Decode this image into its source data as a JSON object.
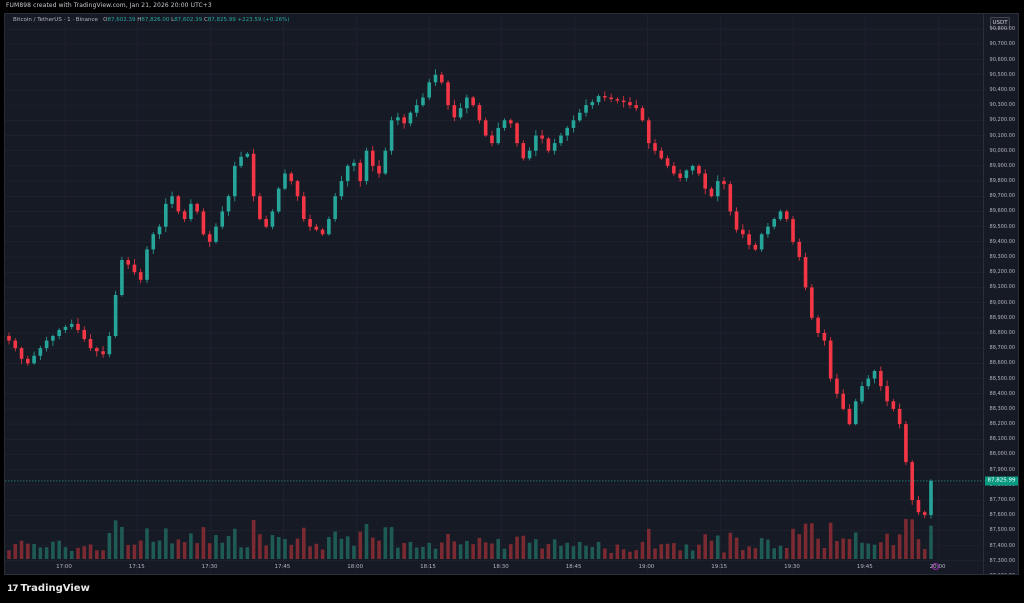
{
  "caption": "FUM898 created with TradingView.com, Jan 21, 2026 20:00 UTC+3",
  "legend": {
    "symbol": "Bitcoin / TetherUS · 1 · Binance",
    "o_label": "O",
    "o_value": "87,602.39",
    "h_label": "H",
    "h_value": "87,826.00",
    "l_label": "L",
    "l_value": "87,602.39",
    "c_label": "C",
    "c_value": "87,825.99",
    "change": "+223.59 (+0.26%)"
  },
  "currency_button": "USDT",
  "last_price_label": "87,825.99",
  "brand": {
    "logo": "17",
    "name": "TradingView"
  },
  "colors": {
    "up": "#26a69a",
    "down": "#f23645",
    "vol_up": "#1f5b55",
    "vol_down": "#7a2a30",
    "background": "#161a25",
    "grid": "#232632"
  },
  "chart_data": {
    "type": "candlestick",
    "x_axis_labels": [
      "17:00",
      "17:15",
      "17:30",
      "17:45",
      "18:00",
      "18:15",
      "18:30",
      "18:45",
      "19:00",
      "19:15",
      "19:30",
      "19:45",
      "20:00"
    ],
    "y_axis_labels": [
      "90,800.00",
      "90,700.00",
      "90,600.00",
      "90,500.00",
      "90,400.00",
      "90,300.00",
      "90,200.00",
      "90,100.00",
      "90,000.00",
      "89,900.00",
      "89,800.00",
      "89,700.00",
      "89,600.00",
      "89,500.00",
      "89,400.00",
      "89,300.00",
      "89,200.00",
      "89,100.00",
      "89,000.00",
      "88,900.00",
      "88,800.00",
      "88,700.00",
      "88,600.00",
      "88,500.00",
      "88,400.00",
      "88,300.00",
      "88,200.00",
      "88,100.00",
      "88,000.00",
      "87,900.00",
      "87,800.00",
      "87,700.00",
      "87,600.00",
      "87,500.00",
      "87,400.00",
      "87,300.00",
      "87,200.00"
    ],
    "ylim": [
      87200,
      90900
    ],
    "grid": true,
    "last_price": 87825.99,
    "series": [
      {
        "name": "BTCUSDT",
        "close": [
          88750,
          88700,
          88630,
          88600,
          88650,
          88700,
          88750,
          88780,
          88820,
          88840,
          88860,
          88820,
          88760,
          88700,
          88680,
          88660,
          88780,
          89050,
          89280,
          89250,
          89200,
          89150,
          89350,
          89450,
          89500,
          89650,
          89700,
          89600,
          89550,
          89650,
          89600,
          89450,
          89400,
          89500,
          89600,
          89700,
          89900,
          89960,
          89980,
          89700,
          89550,
          89500,
          89600,
          89750,
          89850,
          89800,
          89700,
          89550,
          89500,
          89480,
          89450,
          89550,
          89700,
          89800,
          89900,
          89920,
          89800,
          90000,
          89900,
          89850,
          90000,
          90200,
          90220,
          90180,
          90250,
          90300,
          90350,
          90450,
          90500,
          90450,
          90300,
          90220,
          90280,
          90350,
          90300,
          90200,
          90100,
          90050,
          90150,
          90200,
          90180,
          90050,
          89950,
          90000,
          90100,
          90080,
          90000,
          90050,
          90100,
          90150,
          90200,
          90250,
          90300,
          90320,
          90360,
          90350,
          90340,
          90330,
          90320,
          90300,
          90280,
          90200,
          90050,
          90000,
          89950,
          89900,
          89850,
          89820,
          89870,
          89900,
          89850,
          89750,
          89700,
          89800,
          89780,
          89600,
          89480,
          89450,
          89380,
          89350,
          89450,
          89500,
          89550,
          89600,
          89550,
          89400,
          89300,
          89100,
          88900,
          88800,
          88750,
          88500,
          88400,
          88300,
          88200,
          88350,
          88450,
          88500,
          88550,
          88450,
          88350,
          88300,
          88200,
          87950,
          87700,
          87620,
          87602,
          87826
        ]
      }
    ],
    "volume_note": "volume histogram at bottom, colored by candle direction"
  }
}
